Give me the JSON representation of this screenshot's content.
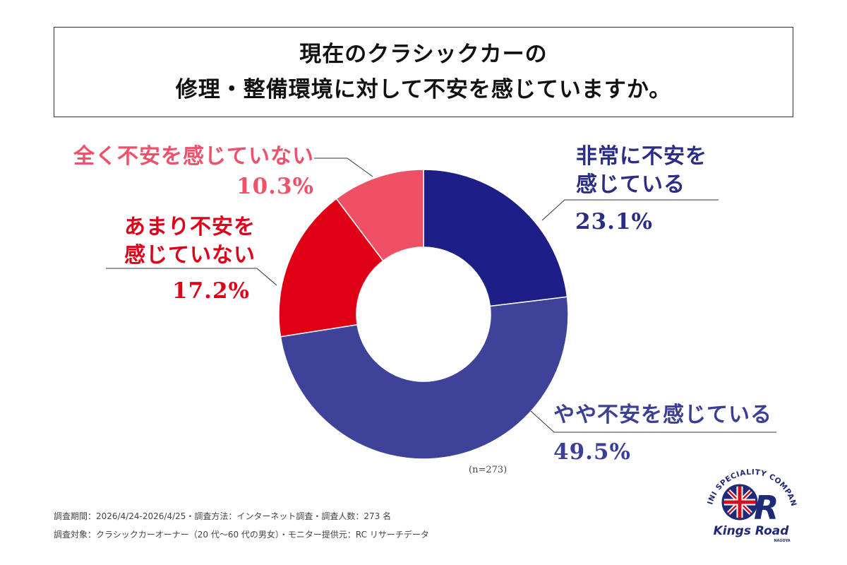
{
  "title": {
    "line1": "現在のクラシックカーの",
    "line2": "修理・整備環境に対して不安を感じていますか。"
  },
  "chart_data": {
    "type": "pie",
    "donut": true,
    "categories": [
      "非常に不安を感じている",
      "やや不安を感じている",
      "あまり不安を感じていない",
      "全く不安を感じていない"
    ],
    "values": [
      23.1,
      49.5,
      17.2,
      10.3
    ],
    "value_labels": [
      "23.1%",
      "49.5%",
      "17.2%",
      "10.3%"
    ],
    "colors": [
      "#1e1f86",
      "#3e4399",
      "#e00015",
      "#f05066"
    ],
    "sample_note": "(n=273)"
  },
  "labels": {
    "very_anxious": {
      "line1": "非常に不安を",
      "line2": "感じている",
      "pct": "23.1%"
    },
    "somewhat_anxious": {
      "text": "やや不安を感じている",
      "pct": "49.5%"
    },
    "not_very_anxious": {
      "line1": "あまり不安を",
      "line2": "感じていない",
      "pct": "17.2%"
    },
    "not_at_all_anxious": {
      "text": "全く不安を感じていない",
      "pct": "10.3%"
    }
  },
  "footnotes": {
    "line1": "調査期間：2026/4/24-2026/4/25・調査方法：インターネット調査・調査人数：273 名",
    "line2": "調査対象：クラシックカーオーナー（20 代〜60 代の男女）・モニター提供元：RC リサーチデータ"
  },
  "logo": {
    "arc_text": "MINI SPECIALITY COMPANY",
    "mark": "R",
    "name": "Kings Road",
    "sub": "NAGOYA"
  }
}
